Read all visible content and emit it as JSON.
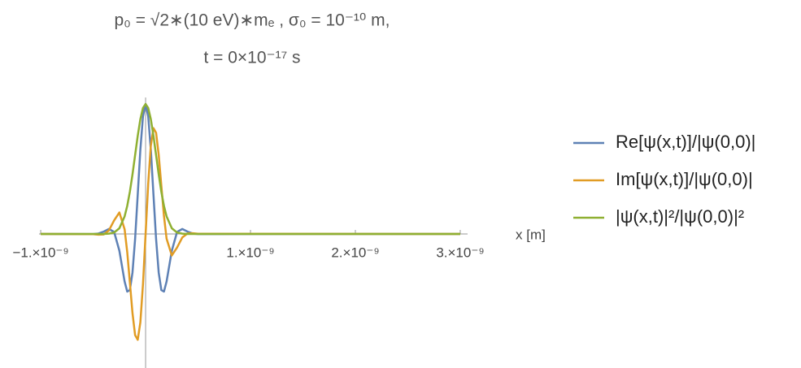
{
  "chart_data": {
    "type": "line",
    "title": "p₀ = √2∗(10 eV)∗mₑ ,  σ₀ = 10⁻¹⁰ m,",
    "subtitle": "t = 0×10⁻¹⁷ s",
    "x_label": "x [m]",
    "x": [
      -1e-09,
      -5e-10,
      -4.5e-10,
      -4e-10,
      -3.5e-10,
      -3e-10,
      -2.5e-10,
      -2e-10,
      -1.75e-10,
      -1.5e-10,
      -1.25e-10,
      -1e-10,
      -7.5e-11,
      -5e-11,
      -2.5e-11,
      0,
      2.5e-11,
      5e-11,
      7.5e-11,
      1e-10,
      1.25e-10,
      1.5e-10,
      1.75e-10,
      2e-10,
      2.5e-10,
      3e-10,
      3.5e-10,
      4e-10,
      4.5e-10,
      5e-10,
      3e-09
    ],
    "series": [
      {
        "name": "Re[ψ(x,t)]/|ψ(0,0)|",
        "color": "#5e81b5",
        "values": [
          0,
          -0.0005,
          0.0034,
          0.0179,
          0.0383,
          0.0155,
          -0.1288,
          -0.3661,
          -0.4433,
          -0.4316,
          -0.297,
          -0.0384,
          0.3026,
          0.6475,
          0.9049,
          1,
          0.9049,
          0.6475,
          0.3026,
          -0.0384,
          -0.297,
          -0.4316,
          -0.4433,
          -0.3661,
          -0.1288,
          0.0155,
          0.0383,
          0.0179,
          0.0034,
          -0.0005,
          0
        ]
      },
      {
        "name": "Im[ψ(x,t)]/|ψ(0,0)|",
        "color": "#e19c24",
        "values": [
          0,
          -0.0018,
          -0.0053,
          -0.0036,
          0.0269,
          0.1043,
          0.1654,
          0.0362,
          -0.1402,
          -0.3721,
          -0.6082,
          -0.7779,
          -0.8145,
          -0.6804,
          -0.3879,
          0,
          0.3879,
          0.6804,
          0.8145,
          0.7779,
          0.6082,
          0.3721,
          0.1402,
          -0.0362,
          -0.1654,
          -0.1043,
          -0.0269,
          0.0036,
          0.0053,
          0.0018,
          0
        ]
      },
      {
        "name": "|ψ(x,t)|²/|ψ(0,0)|²",
        "color": "#8fb032",
        "values": [
          0,
          0,
          0,
          0.0003,
          0.0022,
          0.0111,
          0.0439,
          0.1353,
          0.2162,
          0.3247,
          0.4578,
          0.6065,
          0.7548,
          0.8825,
          0.9692,
          1,
          0.9692,
          0.8825,
          0.7548,
          0.6065,
          0.4578,
          0.3247,
          0.2162,
          0.1353,
          0.0439,
          0.0111,
          0.0022,
          0.0003,
          0,
          0,
          0
        ]
      }
    ],
    "xlim": [
      -1.016e-09,
      3.07e-09
    ],
    "ylim": [
      -1.05,
      1.05
    ],
    "xticks": [
      {
        "value": -1e-09,
        "label": "−1.×10⁻⁹"
      },
      {
        "value": 1e-09,
        "label": "1.×10⁻⁹"
      },
      {
        "value": 2e-09,
        "label": "2.×10⁻⁹"
      },
      {
        "value": 3e-09,
        "label": "3.×10⁻⁹"
      }
    ],
    "legend": "right"
  }
}
